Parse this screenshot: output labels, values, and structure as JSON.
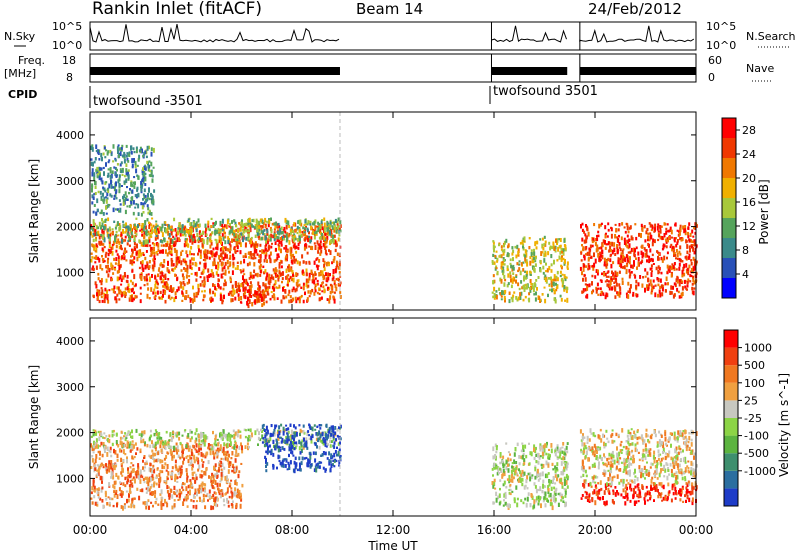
{
  "header": {
    "station": "Rankin Inlet (fitACF)",
    "beam": "Beam 14",
    "date": "24/Feb/2012"
  },
  "status_panels": {
    "nsky_label": "N.Sky",
    "nsky_ticks": [
      "10^5",
      "10^0"
    ],
    "nsearch_label": "N.Search",
    "freq_label_1": "Freq.",
    "freq_label_2": "[MHz]",
    "freq_ticks": [
      "18",
      "8"
    ],
    "nave_label": "Nave",
    "nave_ticks": [
      "60",
      "0"
    ],
    "cpid_label": "CPID",
    "cpid_segments": [
      {
        "label": "twofsound -3501",
        "start_hour": 0
      },
      {
        "label": "twofsound 3501",
        "start_hour": 16
      }
    ],
    "data_intervals_hours": [
      [
        0,
        9.9
      ],
      [
        15.9,
        18.9
      ],
      [
        19.4,
        24
      ]
    ]
  },
  "chart_data": [
    {
      "type": "heatmap",
      "name": "power",
      "ylabel": "Slant Range [km]",
      "xlabel": "Time UT",
      "xlim": [
        0,
        24
      ],
      "ylim": [
        180,
        4500
      ],
      "x_ticks": [
        "00:00",
        "04:00",
        "08:00",
        "12:00",
        "16:00",
        "20:00",
        "00:00"
      ],
      "y_ticks": [
        1000,
        2000,
        3000,
        4000
      ],
      "colorbar": {
        "label": "Power [dB]",
        "ticks": [
          4,
          8,
          12,
          16,
          20,
          24,
          28
        ],
        "range": [
          0,
          30
        ],
        "colors": [
          "#0000ff",
          "#2850b8",
          "#3a8a8a",
          "#55a45c",
          "#a8c83a",
          "#f0b000",
          "#f07800",
          "#f03800",
          "#ff0000"
        ]
      }
    },
    {
      "type": "heatmap",
      "name": "velocity",
      "ylabel": "Slant Range [km]",
      "xlabel": "Time UT",
      "xlim": [
        0,
        24
      ],
      "ylim": [
        180,
        4500
      ],
      "x_ticks": [
        "00:00",
        "04:00",
        "08:00",
        "12:00",
        "16:00",
        "20:00",
        "00:00"
      ],
      "y_ticks": [
        1000,
        2000,
        3000,
        4000
      ],
      "colorbar": {
        "label": "Velocity [m s^-1]",
        "ticks": [
          "1000",
          "500",
          "100",
          "25",
          "-25",
          "-100",
          "-500",
          "-1000"
        ],
        "colors": [
          "#1e3cc8",
          "#2b6ea0",
          "#3e8f6e",
          "#5cb440",
          "#8cd446",
          "#c8c8c0",
          "#f0a040",
          "#f07820",
          "#f04010",
          "#ff0000"
        ]
      }
    }
  ],
  "echo_regions": {
    "power": [
      {
        "t0": 0.0,
        "t1": 9.9,
        "r0": 400,
        "r1": 2100,
        "level": 0.8
      },
      {
        "t0": 0.0,
        "t1": 9.9,
        "r0": 1700,
        "r1": 2200,
        "level": 0.45
      },
      {
        "t0": 0.0,
        "t1": 2.5,
        "r0": 2300,
        "r1": 3800,
        "level": 0.3
      },
      {
        "t0": 5.8,
        "t1": 7.0,
        "r0": 300,
        "r1": 800,
        "level": 0.85
      },
      {
        "t0": 15.9,
        "t1": 18.9,
        "r0": 400,
        "r1": 1800,
        "level": 0.55
      },
      {
        "t0": 19.4,
        "t1": 24.0,
        "r0": 500,
        "r1": 2100,
        "level": 0.85
      }
    ],
    "velocity": [
      {
        "t0": 0.0,
        "t1": 6.0,
        "r0": 400,
        "r1": 1800,
        "level": 0.72
      },
      {
        "t0": 0.0,
        "t1": 9.9,
        "r0": 1700,
        "r1": 2100,
        "level": 0.5
      },
      {
        "t0": 6.8,
        "t1": 9.9,
        "r0": 1200,
        "r1": 2200,
        "level": 0.05
      },
      {
        "t0": 15.9,
        "t1": 18.9,
        "r0": 400,
        "r1": 1800,
        "level": 0.5
      },
      {
        "t0": 19.4,
        "t1": 24.0,
        "r0": 500,
        "r1": 900,
        "level": 0.92
      },
      {
        "t0": 19.4,
        "t1": 24.0,
        "r0": 900,
        "r1": 2100,
        "level": 0.6
      }
    ]
  }
}
